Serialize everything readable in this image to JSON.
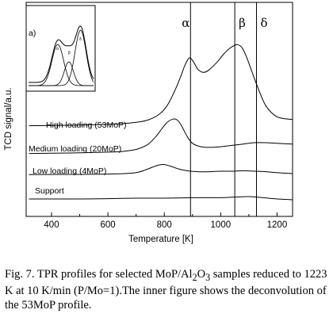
{
  "chart_data": [
    {
      "type": "line",
      "xlabel": "Temperature [K]",
      "ylabel": "TCD signal/a.u.",
      "xlim": [
        310,
        1255
      ],
      "x_ticks": [
        400,
        600,
        800,
        1000,
        1200
      ],
      "y_ticks": "none (arbitrary units)",
      "grid": false,
      "vertical_lines": [
        {
          "x": 893,
          "label": "α"
        },
        {
          "x": 1050,
          "label": "β"
        },
        {
          "x": 1127,
          "label": "δ"
        }
      ],
      "series": [
        {
          "name": "High loading (53MoP)",
          "x": [
            320,
            400,
            500,
            600,
            650,
            700,
            740,
            780,
            810,
            840,
            860,
            875,
            890,
            905,
            920,
            940,
            960,
            990,
            1010,
            1030,
            1050,
            1060,
            1075,
            1090,
            1110,
            1130,
            1160,
            1200,
            1255
          ],
          "y": [
            0.65,
            0.67,
            0.7,
            0.75,
            0.8,
            0.9,
            1.05,
            1.45,
            2.1,
            3.3,
            4.3,
            5.1,
            5.55,
            5.2,
            4.7,
            4.5,
            4.7,
            5.3,
            5.8,
            6.2,
            6.45,
            6.5,
            6.3,
            5.7,
            4.6,
            3.5,
            2.1,
            1.3,
            1.1
          ]
        },
        {
          "name": "Medium loading (20MoP)",
          "x": [
            320,
            400,
            500,
            600,
            650,
            700,
            740,
            770,
            790,
            810,
            830,
            845,
            860,
            880,
            900,
            930,
            960,
            1000,
            1040,
            1080,
            1120,
            1160,
            1200,
            1255
          ],
          "y": [
            0.2,
            0.22,
            0.25,
            0.3,
            0.35,
            0.5,
            0.85,
            1.45,
            2.0,
            2.5,
            2.75,
            2.7,
            2.3,
            1.5,
            0.95,
            0.7,
            0.65,
            0.7,
            0.8,
            0.9,
            1.0,
            1.0,
            0.95,
            0.9
          ]
        },
        {
          "name": "Low loading (4MoP)",
          "x": [
            320,
            400,
            500,
            600,
            660,
            700,
            730,
            760,
            780,
            800,
            820,
            850,
            880,
            920,
            960,
            1000,
            1040,
            1080,
            1120,
            1160,
            1200,
            1255
          ],
          "y": [
            0.15,
            0.16,
            0.17,
            0.2,
            0.25,
            0.35,
            0.6,
            0.95,
            1.15,
            1.2,
            1.05,
            0.75,
            0.55,
            0.45,
            0.45,
            0.5,
            0.5,
            0.55,
            0.5,
            0.45,
            0.35,
            0.25
          ]
        },
        {
          "name": "Support",
          "x": [
            320,
            400,
            500,
            600,
            700,
            800,
            900,
            1000,
            1050,
            1100,
            1150,
            1200,
            1255
          ],
          "y": [
            0.0,
            0.0,
            0.0,
            0.02,
            0.05,
            0.05,
            0.08,
            0.08,
            0.12,
            0.15,
            0.08,
            0.0,
            -0.05
          ]
        }
      ]
    },
    {
      "type": "line",
      "panel_label": "a)",
      "labels": [
        "α",
        "β",
        "δ"
      ],
      "description_scope": "inset deconvolution of the 53MoP profile"
    }
  ],
  "caption": {
    "line1": "Fig. 7. TPR profiles for selected MoP/Al",
    "sub1": "2",
    "mid1": "O",
    "sub2": "3",
    "rest": " samples reduced to 1223 K at 10 K/min (P/Mo=1).The inner figure shows the deconvolution of the 53MoP profile."
  }
}
